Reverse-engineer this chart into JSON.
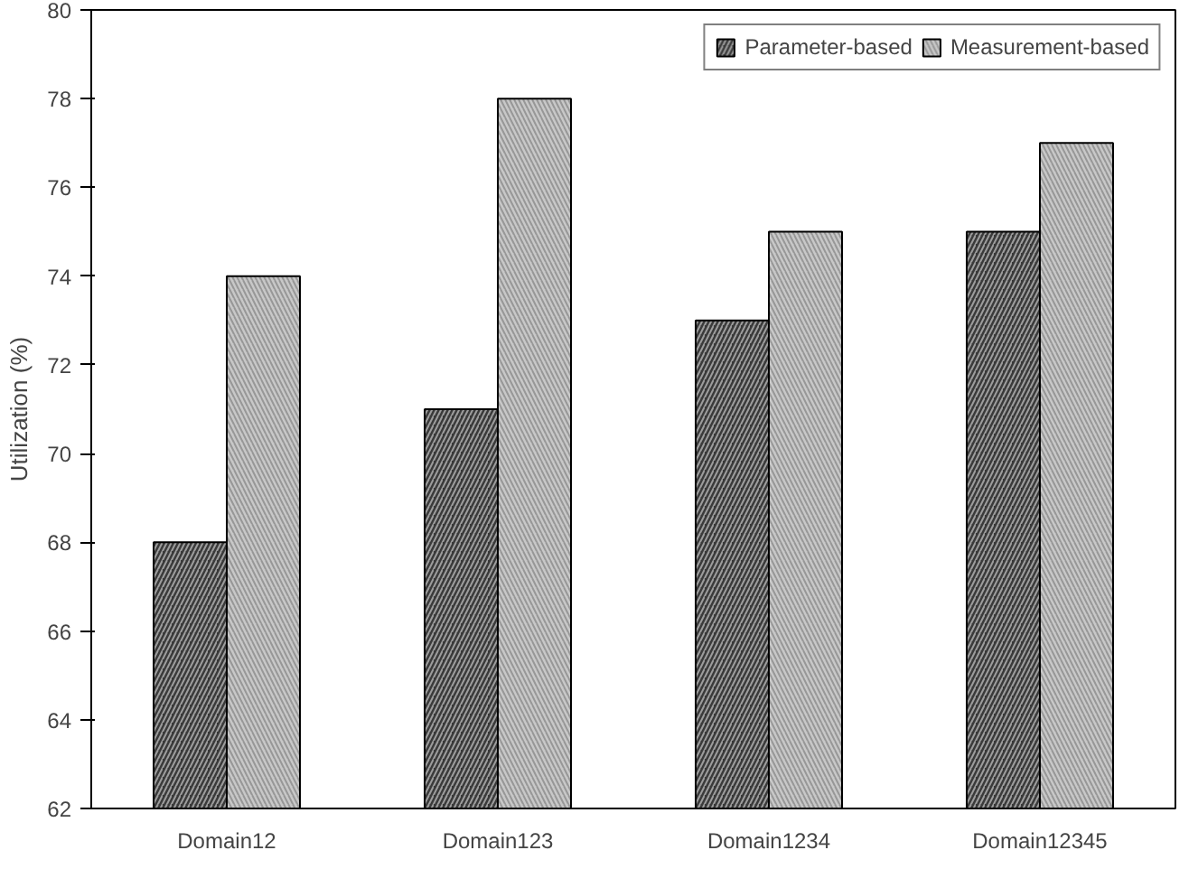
{
  "chart_data": {
    "type": "bar",
    "ylabel": "Utilization (%)",
    "categories": [
      "Domain12",
      "Domain123",
      "Domain1234",
      "Domain12345"
    ],
    "series": [
      {
        "name": "Parameter-based",
        "color": "#3a3a3a",
        "values": [
          68,
          71,
          73,
          75
        ]
      },
      {
        "name": "Measurement-based",
        "color": "#c8c8c8",
        "values": [
          74,
          78,
          75,
          77
        ]
      }
    ],
    "ylim": [
      62,
      80
    ],
    "yticks": [
      62,
      64,
      66,
      68,
      70,
      72,
      74,
      76,
      78,
      80
    ],
    "grid": false,
    "legend": "top right"
  }
}
